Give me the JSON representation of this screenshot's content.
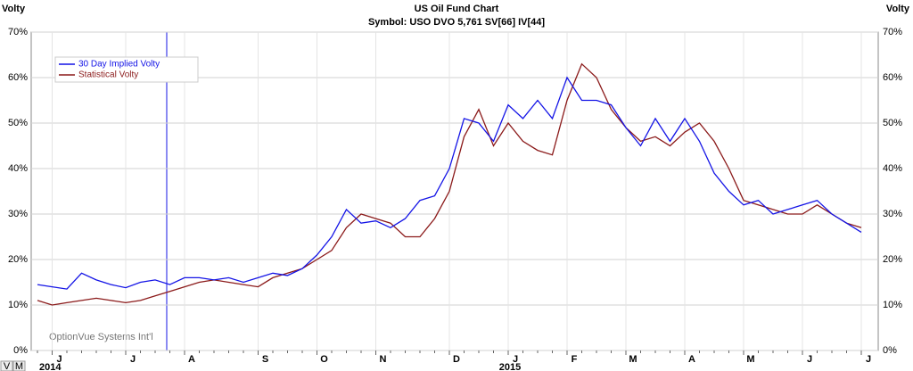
{
  "chart_data": {
    "type": "line",
    "title": "US Oil Fund Chart",
    "subtitle": "Symbol: USO  DVO 5,761  SV[66]  IV[44]",
    "y_label": "Volty",
    "watermark": "OptionVue Systems Int'l",
    "controls": [
      "V",
      "M"
    ],
    "legend": "upper left",
    "grid": true,
    "ylim": [
      0,
      70
    ],
    "yticks": [
      {
        "value": 0,
        "label": "0%"
      },
      {
        "value": 10,
        "label": "10%"
      },
      {
        "value": 20,
        "label": "20%"
      },
      {
        "value": 30,
        "label": "30%"
      },
      {
        "value": 40,
        "label": "40%"
      },
      {
        "value": 50,
        "label": "50%"
      },
      {
        "value": 60,
        "label": "60%"
      },
      {
        "value": 70,
        "label": "70%"
      }
    ],
    "categories": [
      null,
      "J",
      null,
      null,
      null,
      null,
      "J",
      null,
      null,
      null,
      "A",
      null,
      null,
      null,
      null,
      "S",
      null,
      null,
      null,
      "O",
      null,
      null,
      null,
      "N",
      null,
      null,
      null,
      null,
      "D",
      null,
      null,
      null,
      "J",
      null,
      null,
      null,
      "F",
      null,
      null,
      null,
      "M",
      null,
      null,
      null,
      "A",
      null,
      null,
      null,
      "M",
      null,
      null,
      null,
      "J",
      null,
      null,
      null,
      "J"
    ],
    "years": [
      "2014",
      null,
      null,
      null,
      null,
      null,
      null,
      null,
      null,
      null,
      null,
      null,
      null,
      null,
      null,
      null,
      null,
      null,
      null,
      null,
      null,
      null,
      null,
      null,
      null,
      null,
      null,
      null,
      null,
      null,
      null,
      null,
      "2015",
      null,
      null,
      null,
      null,
      null,
      null,
      null,
      null,
      null,
      null,
      null,
      null,
      null,
      null,
      null,
      null,
      null,
      null,
      null,
      null,
      null,
      null,
      null,
      null
    ],
    "series": [
      {
        "name": "30 Day Implied Volty",
        "color": "#1414e6",
        "values": [
          14.5,
          14,
          13.5,
          17,
          15.5,
          14.5,
          13.8,
          15,
          15.5,
          14.5,
          16,
          16,
          15.5,
          16,
          15,
          16,
          17,
          16.5,
          18,
          21,
          25,
          31,
          28,
          28.5,
          27,
          29,
          33,
          34,
          40,
          51,
          50,
          46,
          54,
          51,
          55,
          51,
          60,
          55,
          55,
          54,
          49,
          45,
          51,
          46,
          51,
          46,
          39,
          35,
          32,
          33,
          30,
          31,
          32,
          33,
          30,
          28,
          26
        ]
      },
      {
        "name": "Statistical Volty",
        "color": "#8b1a1a",
        "values": [
          11,
          10,
          10.5,
          11,
          11.5,
          11,
          10.5,
          11,
          12,
          13,
          14,
          15,
          15.5,
          15,
          14.5,
          14,
          16,
          17,
          18,
          20,
          22,
          27,
          30,
          29,
          28,
          25,
          25,
          29,
          35,
          47,
          53,
          45,
          50,
          46,
          44,
          43,
          55,
          63,
          60,
          53,
          49,
          46,
          47,
          45,
          48,
          50,
          46,
          40,
          33,
          32,
          31,
          30,
          30,
          32,
          30,
          28,
          27
        ]
      }
    ]
  }
}
